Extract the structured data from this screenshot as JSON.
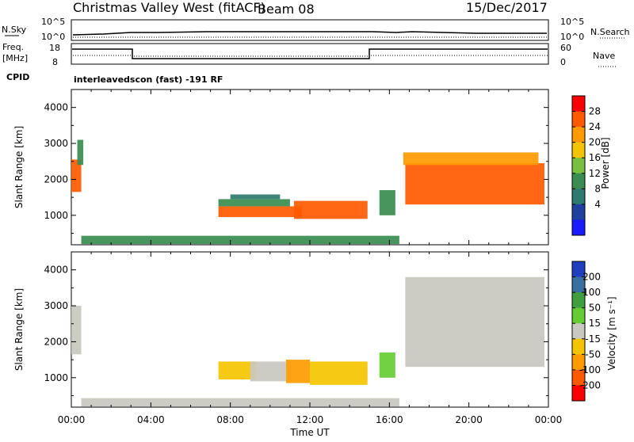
{
  "header": {
    "station": "Christmas Valley West (fitACF)",
    "beam": "Beam 08",
    "date": "15/Dec/2017"
  },
  "strips": {
    "nsky_label": "N.Sky",
    "nsky_ticks": [
      "10^5",
      "10^0"
    ],
    "nsearch_label": "N.Search",
    "nsearch_ticks": [
      "10^5",
      "10^0"
    ],
    "freq_label_1": "Freq.",
    "freq_label_2": "[MHz]",
    "freq_ticks": [
      "18",
      "8"
    ],
    "nave_label": "Nave",
    "nave_ticks": [
      "60",
      "0"
    ],
    "cpid_label": "CPID",
    "cpid_text": "interleavedscon (fast) -191 RF"
  },
  "axes": {
    "xlabel": "Time UT",
    "ylabel": "Slant Range [km]",
    "x_ticks": [
      "00:00",
      "04:00",
      "08:00",
      "12:00",
      "16:00",
      "20:00",
      "00:00"
    ],
    "y_ticks": [
      "1000",
      "2000",
      "3000",
      "4000"
    ]
  },
  "power_colorbar": {
    "label": "Power [dB]",
    "ticks": [
      "28",
      "24",
      "20",
      "16",
      "12",
      "8",
      "4"
    ],
    "colors": [
      "#ff0000",
      "#ff5a00",
      "#ff9a00",
      "#f5c400",
      "#78c040",
      "#3a8c50",
      "#2e7a70",
      "#2040a0",
      "#1a1aff"
    ]
  },
  "velocity_colorbar": {
    "label": "Velocity [m s⁻¹]",
    "ticks": [
      "200",
      "100",
      "50",
      "15",
      "-15",
      "-50",
      "-100",
      "-200"
    ],
    "colors": [
      "#2040c0",
      "#3a70a0",
      "#3f9f3f",
      "#66cc33",
      "#c8c8c0",
      "#f5c400",
      "#ff9a00",
      "#ff5a00",
      "#ff0000"
    ]
  },
  "chart_data": [
    {
      "type": "heatmap",
      "title": "Power",
      "xlabel": "Time UT",
      "ylabel": "Slant Range [km]",
      "xlim": [
        0,
        24
      ],
      "ylim": [
        180,
        4500
      ],
      "colorbar": {
        "label": "Power [dB]",
        "range": [
          0,
          32
        ]
      },
      "regions": [
        {
          "t0": 0.0,
          "t1": 0.5,
          "r0": 1650,
          "r1": 2550,
          "value": 27
        },
        {
          "t0": 0.3,
          "t1": 0.6,
          "r0": 2400,
          "r1": 3100,
          "value": 12
        },
        {
          "t0": 7.4,
          "t1": 11.6,
          "r0": 950,
          "r1": 1250,
          "value": 26
        },
        {
          "t0": 7.4,
          "t1": 11.0,
          "r0": 1250,
          "r1": 1450,
          "value": 14
        },
        {
          "t0": 8.0,
          "t1": 10.5,
          "r0": 1450,
          "r1": 1580,
          "value": 10
        },
        {
          "t0": 11.2,
          "t1": 14.9,
          "r0": 900,
          "r1": 1400,
          "value": 27
        },
        {
          "t0": 0.5,
          "t1": 16.5,
          "r0": 200,
          "r1": 430,
          "value": 12
        },
        {
          "t0": 15.5,
          "t1": 16.3,
          "r0": 1000,
          "r1": 1700,
          "value": 14
        },
        {
          "t0": 16.8,
          "t1": 23.8,
          "r0": 1300,
          "r1": 2450,
          "value": 27
        },
        {
          "t0": 16.7,
          "t1": 23.5,
          "r0": 2400,
          "r1": 2750,
          "value": 22
        }
      ]
    },
    {
      "type": "heatmap",
      "title": "Velocity",
      "xlabel": "Time UT",
      "ylabel": "Slant Range [km]",
      "xlim": [
        0,
        24
      ],
      "ylim": [
        180,
        4500
      ],
      "colorbar": {
        "label": "Velocity [m s⁻¹]",
        "range": [
          -250,
          250
        ]
      },
      "regions": [
        {
          "t0": 0.0,
          "t1": 0.5,
          "r0": 1650,
          "r1": 3000,
          "value": 0
        },
        {
          "t0": 7.4,
          "t1": 9.3,
          "r0": 950,
          "r1": 1450,
          "value": -40
        },
        {
          "t0": 9.0,
          "t1": 10.8,
          "r0": 900,
          "r1": 1450,
          "value": 0
        },
        {
          "t0": 10.8,
          "t1": 12.0,
          "r0": 850,
          "r1": 1500,
          "value": -120
        },
        {
          "t0": 12.0,
          "t1": 14.9,
          "r0": 800,
          "r1": 1450,
          "value": -40
        },
        {
          "t0": 0.5,
          "t1": 16.5,
          "r0": 200,
          "r1": 430,
          "value": -20
        },
        {
          "t0": 15.5,
          "t1": 16.3,
          "r0": 1000,
          "r1": 1700,
          "value": 60
        },
        {
          "t0": 16.8,
          "t1": 23.8,
          "r0": 1300,
          "r1": 3800,
          "value": 0
        }
      ]
    }
  ]
}
